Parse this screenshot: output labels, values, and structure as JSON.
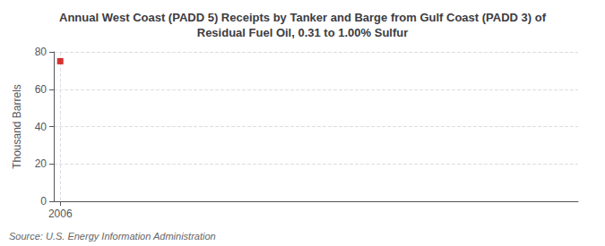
{
  "chart_data": {
    "type": "scatter",
    "title": "Annual West Coast (PADD 5) Receipts by Tanker and Barge from Gulf Coast (PADD 3) of\nResidual Fuel Oil, 0.31 to 1.00% Sulfur",
    "ylabel": "Thousand Barrels",
    "source": "Source: U.S. Energy Information Administration",
    "x": [
      2006
    ],
    "values": [
      75
    ],
    "color": "#cc0000",
    "marker": "square",
    "xlim": [
      2005.8,
      2022
    ],
    "xticks": [
      2006
    ],
    "ylim": [
      0,
      80
    ],
    "yticks": [
      0,
      20,
      40,
      60,
      80
    ],
    "grid": true
  }
}
